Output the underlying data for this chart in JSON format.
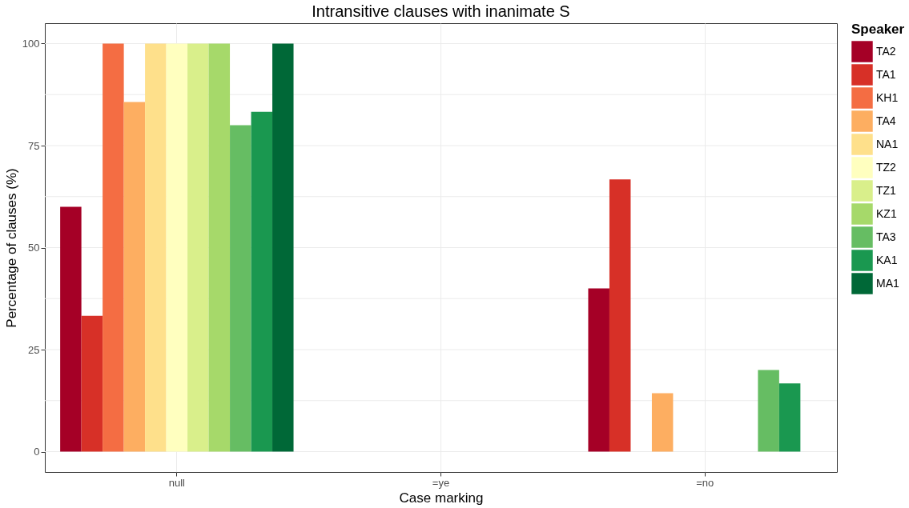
{
  "chart_data": {
    "type": "bar",
    "title": "Intransitive clauses with inanimate S",
    "xlabel": "Case marking",
    "ylabel": "Percentage of clauses (%)",
    "legend_title": "Speaker",
    "legend": "right",
    "grid": true,
    "categories": [
      "null",
      "=ye",
      "=no"
    ],
    "ylim": [
      -5,
      105
    ],
    "yticks": [
      0,
      {
        "value": 12.5,
        "label": null
      },
      25,
      {
        "value": 37.5,
        "label": null
      },
      50,
      {
        "value": 62.5,
        "label": null
      },
      75,
      {
        "value": 87.5,
        "label": null
      },
      100
    ],
    "series": [
      {
        "name": "TA2",
        "color": "#a50026",
        "values": [
          60,
          null,
          40
        ]
      },
      {
        "name": "TA1",
        "color": "#d73027",
        "values": [
          33.3,
          null,
          66.7
        ]
      },
      {
        "name": "KH1",
        "color": "#f46d43",
        "values": [
          100,
          null,
          null
        ]
      },
      {
        "name": "TA4",
        "color": "#fdae61",
        "values": [
          85.7,
          null,
          14.3
        ]
      },
      {
        "name": "NA1",
        "color": "#fee08b",
        "values": [
          100,
          null,
          null
        ]
      },
      {
        "name": "TZ2",
        "color": "#ffffbf",
        "values": [
          100,
          null,
          null
        ]
      },
      {
        "name": "TZ1",
        "color": "#d9ef8b",
        "values": [
          100,
          null,
          null
        ]
      },
      {
        "name": "KZ1",
        "color": "#a6d96a",
        "values": [
          100,
          null,
          null
        ]
      },
      {
        "name": "TA3",
        "color": "#66bd63",
        "values": [
          80,
          null,
          20
        ]
      },
      {
        "name": "KA1",
        "color": "#1a9850",
        "values": [
          83.3,
          null,
          16.7
        ]
      },
      {
        "name": "MA1",
        "color": "#006837",
        "values": [
          100,
          null,
          null
        ]
      }
    ]
  }
}
